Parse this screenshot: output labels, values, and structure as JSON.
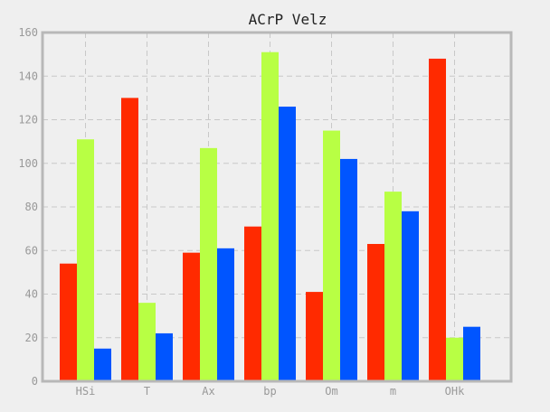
{
  "chart_data": {
    "type": "bar",
    "title": "ACrP Velz",
    "xlabel": "",
    "ylabel": "",
    "categories": [
      "HSi",
      "T",
      "Ax",
      "bp",
      "Om",
      "m",
      "OHk"
    ],
    "series": [
      {
        "color": "#ff2a00",
        "values": [
          54,
          130,
          59,
          71,
          41,
          63,
          148
        ]
      },
      {
        "color": "#b8ff44",
        "values": [
          111,
          36,
          107,
          151,
          115,
          87,
          20
        ]
      },
      {
        "color": "#0055ff",
        "values": [
          15,
          22,
          61,
          126,
          102,
          78,
          25
        ]
      }
    ],
    "ylim": [
      0,
      160
    ],
    "yticks": [
      0,
      20,
      40,
      60,
      80,
      100,
      120,
      140,
      160
    ],
    "grid": true,
    "legend": "none"
  }
}
